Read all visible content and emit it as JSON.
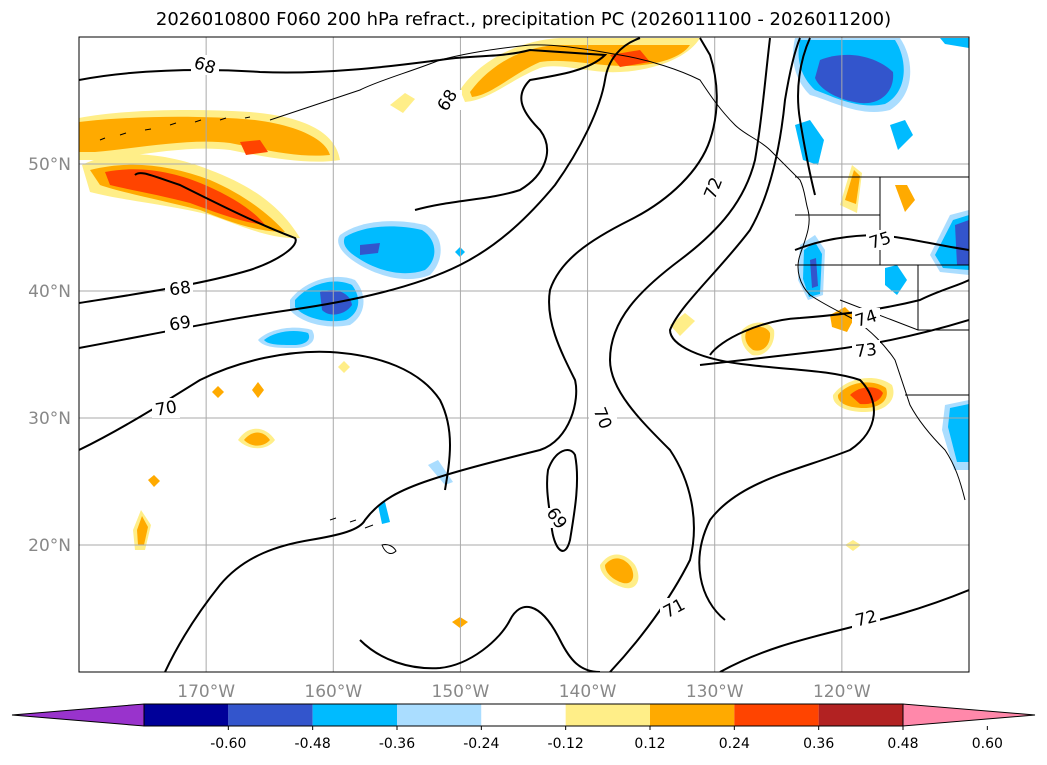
{
  "title": "2026010800 F060 200 hPa refract., precipitation PC (2026011100 - 2026011200)",
  "map": {
    "lat_labels": [
      "50°N",
      "40°N",
      "30°N",
      "20°N"
    ],
    "lon_labels": [
      "170°W",
      "160°W",
      "150°W",
      "140°W",
      "130°W",
      "120°W"
    ],
    "lat_values": [
      50,
      40,
      30,
      20
    ],
    "lon_values": [
      -170,
      -160,
      -150,
      -140,
      -130,
      -120
    ],
    "lon_range": [
      -180,
      -110
    ],
    "lat_range": [
      10,
      60
    ],
    "grid": true
  },
  "contour_labels": [
    "68",
    "68",
    "68",
    "69",
    "70",
    "70",
    "69",
    "71",
    "72",
    "72",
    "73",
    "74",
    "75"
  ],
  "colorbar": {
    "levels": [
      "-0.60",
      "-0.48",
      "-0.36",
      "-0.24",
      "-0.12",
      "0.12",
      "0.24",
      "0.36",
      "0.48",
      "0.60"
    ],
    "colors": [
      "#9933cc",
      "#000099",
      "#3355cc",
      "#00bbff",
      "#aaddff",
      "#ffffff",
      "#ffee88",
      "#ffaa00",
      "#ff4400",
      "#b22222",
      "#ff88aa"
    ]
  }
}
